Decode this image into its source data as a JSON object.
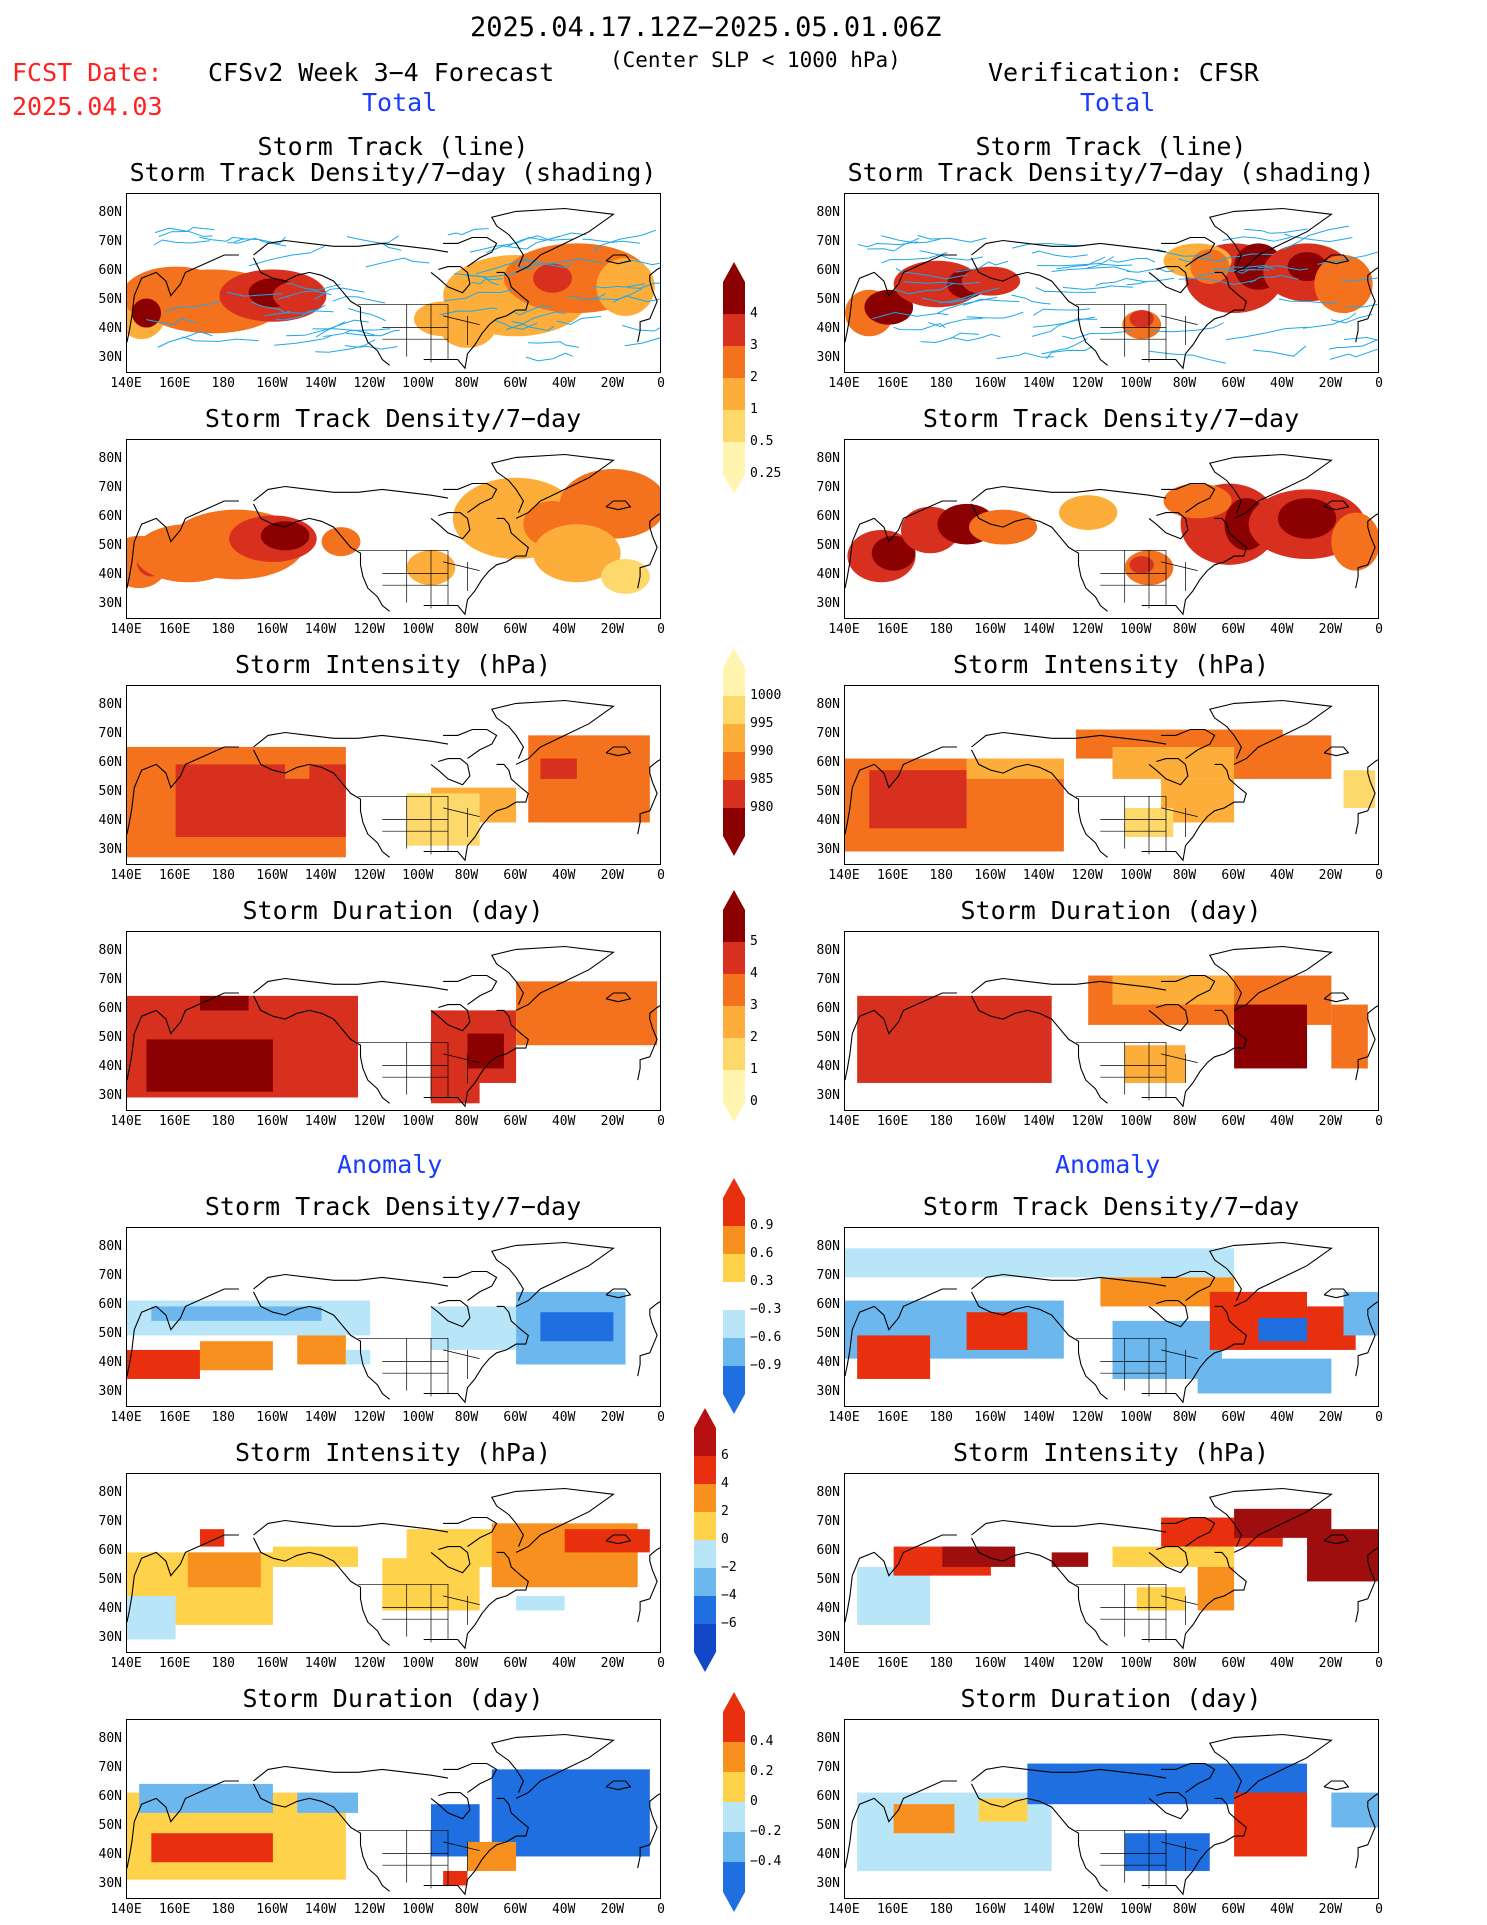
{
  "header": {
    "date_range": "2025.04.17.12Z−2025.05.01.06Z",
    "fcst_label": "FCST Date:",
    "fcst_date": "2025.04.03",
    "model_title": "CFSv2 Week 3−4 Forecast",
    "criterion": "(Center SLP < 1000 hPa)",
    "verification": "Verification: CFSR"
  },
  "sections": {
    "total": "Total",
    "anomaly": "Anomaly"
  },
  "panel_titles": {
    "track_line": "Storm Track (line)",
    "track_density_shading": "Storm Track Density/7−day (shading)",
    "track_density": "Storm Track Density/7−day",
    "intensity": "Storm Intensity (hPa)",
    "duration": "Storm Duration (day)"
  },
  "axes": {
    "lat_labels": [
      "80N",
      "70N",
      "60N",
      "50N",
      "40N",
      "30N"
    ],
    "lon_labels": [
      "140E",
      "160E",
      "180",
      "160W",
      "140W",
      "120W",
      "100W",
      "80W",
      "60W",
      "40W",
      "20W",
      "0"
    ]
  },
  "colorbars": {
    "track_density_total": {
      "labels": [
        "4",
        "3",
        "2",
        "1",
        "0.5",
        "0.25"
      ],
      "colors": [
        "#8b0000",
        "#d7301f",
        "#f4711e",
        "#fdae3a",
        "#fdd86b",
        "#fff5b0"
      ]
    },
    "intensity_total": {
      "labels": [
        "1000",
        "995",
        "990",
        "985",
        "980"
      ],
      "colors": [
        "#fff5b0",
        "#fdd86b",
        "#fdae3a",
        "#f4711e",
        "#d7301f",
        "#8b0000"
      ]
    },
    "duration_total": {
      "labels": [
        "5",
        "4",
        "3",
        "2",
        "1",
        "0"
      ],
      "colors": [
        "#8b0000",
        "#d7301f",
        "#f4711e",
        "#fdae3a",
        "#fdd86b",
        "#fff5b0"
      ]
    },
    "density_anom": {
      "labels": [
        "0.9",
        "0.6",
        "0.3",
        "−0.3",
        "−0.6",
        "−0.9"
      ],
      "colors": [
        "#e8300e",
        "#f7901e",
        "#ffd24c",
        "#ffffff",
        "#b8e6f8",
        "#6cb8ee",
        "#1f6fe0"
      ]
    },
    "intensity_anom": {
      "labels": [
        "6",
        "4",
        "2",
        "0",
        "−2",
        "−4",
        "−6"
      ],
      "colors": [
        "#b81010",
        "#e8300e",
        "#f7901e",
        "#ffd24c",
        "#b8e6f8",
        "#6cb8ee",
        "#1f6fe0",
        "#1248c8"
      ]
    },
    "duration_anom": {
      "labels": [
        "0.4",
        "0.2",
        "0",
        "−0.2",
        "−0.4"
      ],
      "colors": [
        "#e8300e",
        "#f7901e",
        "#ffd24c",
        "#b8e6f8",
        "#6cb8ee",
        "#1f6fe0"
      ]
    }
  },
  "palette": {
    "track_line": "#1ea8e8",
    "land_line": "#000000"
  }
}
